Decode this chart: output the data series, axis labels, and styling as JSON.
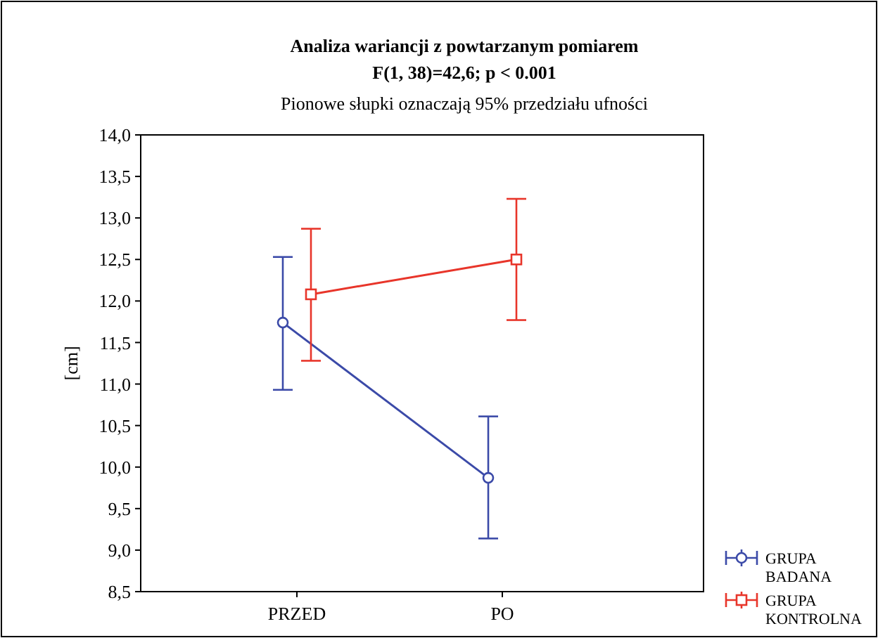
{
  "chart_data": {
    "type": "line",
    "title": "Analiza wariancji z powtarzanym pomiarem",
    "subtitle": "F(1, 38)=42,6; p < 0.001",
    "annotations": [
      "Pionowe słupki oznaczają 95% przedziału ufności"
    ],
    "ylabel": "[cm]",
    "categories": [
      "PRZED",
      "PO"
    ],
    "series": [
      {
        "name": "GRUPA BADANA",
        "color": "#3b4aa8",
        "marker": "circle",
        "values": [
          11.74,
          9.87
        ],
        "errors": [
          [
            10.93,
            12.53
          ],
          [
            9.14,
            10.61
          ]
        ]
      },
      {
        "name": "GRUPA KONTROLNA",
        "color": "#e8352a",
        "marker": "square",
        "values": [
          12.08,
          12.5
        ],
        "errors": [
          [
            11.28,
            12.87
          ],
          [
            11.77,
            13.23
          ]
        ]
      }
    ],
    "ylim": [
      8.5,
      14
    ],
    "yticks": [
      {
        "value": 8.5,
        "label": "8,5"
      },
      {
        "value": 9,
        "label": "9,0"
      },
      {
        "value": 9.5,
        "label": "9,5"
      },
      {
        "value": 10,
        "label": "10,0"
      },
      {
        "value": 10.5,
        "label": "10,5"
      },
      {
        "value": 11,
        "label": "11,0"
      },
      {
        "value": 11.5,
        "label": "11,5"
      },
      {
        "value": 12,
        "label": "12,0"
      },
      {
        "value": 12.5,
        "label": "12,5"
      },
      {
        "value": 13,
        "label": "13,0"
      },
      {
        "value": 13.5,
        "label": "13,5"
      },
      {
        "value": 14,
        "label": "14,0"
      }
    ],
    "grid": false,
    "legend": "bottom right"
  }
}
